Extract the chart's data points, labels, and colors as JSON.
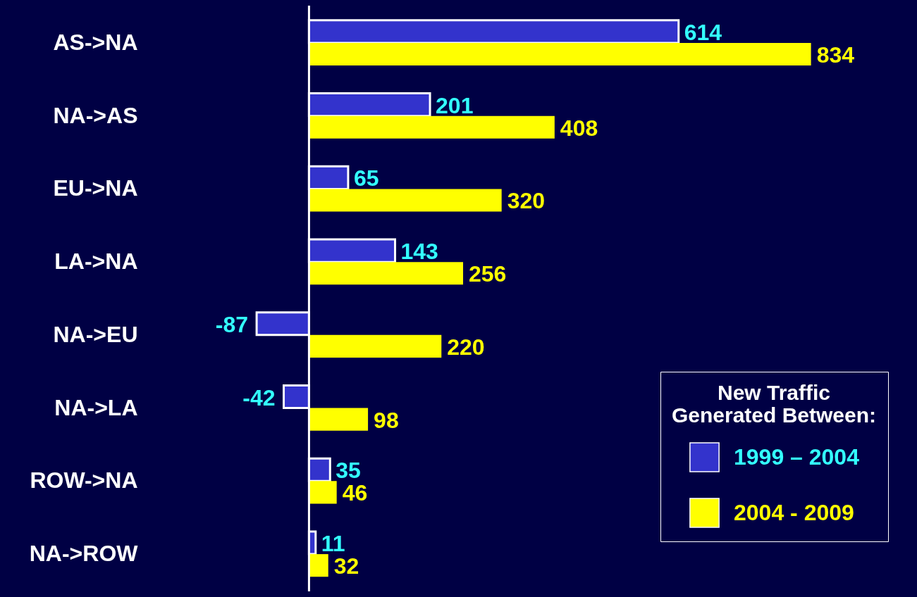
{
  "chart_data": {
    "type": "bar",
    "orientation": "horizontal",
    "categories": [
      "AS->NA",
      "NA->AS",
      "EU->NA",
      "LA->NA",
      "NA->EU",
      "NA->LA",
      "ROW->NA",
      "NA->ROW"
    ],
    "series": [
      {
        "name": "1999 – 2004",
        "color": "#3333cc",
        "values": [
          614,
          201,
          65,
          143,
          -87,
          -42,
          35,
          11
        ]
      },
      {
        "name": "2004 - 2009",
        "color": "#ffff00",
        "values": [
          834,
          408,
          320,
          256,
          220,
          98,
          46,
          32
        ]
      }
    ],
    "legend_title": "New Traffic Generated Between:",
    "legend": "bottom right",
    "data_labels": true
  }
}
